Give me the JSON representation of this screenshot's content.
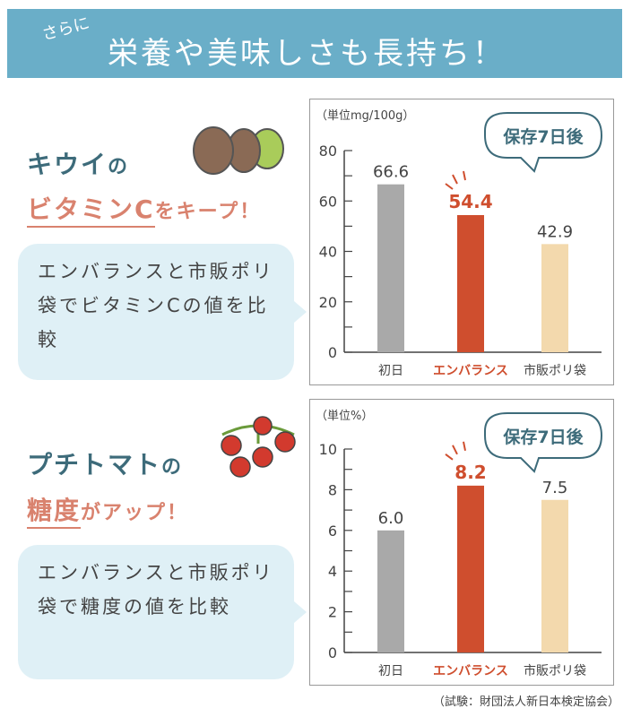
{
  "banner": {
    "pre": "さらに",
    "title": "栄養や美味しさも長持ち！",
    "color": "#6aaec8"
  },
  "kiwi": {
    "line1": "キウイ",
    "line1_suffix": "の",
    "line2_em": "ビタミンC",
    "line2_rest": "をキープ！",
    "bubble": "エンバランスと市販ポリ袋でビタミンCの値を比較",
    "icon": "kiwi-illustration"
  },
  "tomato": {
    "line1": "プチトマト",
    "line1_suffix": "の",
    "line2_em": "糖度",
    "line2_rest": "がアップ！",
    "bubble": "エンバランスと市販ポリ袋で糖度の値を比較",
    "icon": "tomato-illustration"
  },
  "chart_data": [
    {
      "type": "bar",
      "unit_label": "（単位mg/100g）",
      "callout": "保存7日後",
      "categories": [
        "初日",
        "エンバランス",
        "市販ポリ袋"
      ],
      "values": [
        66.6,
        54.4,
        42.9
      ],
      "value_labels": [
        "66.6",
        "54.4",
        "42.9"
      ],
      "ylim": [
        0,
        80
      ],
      "yticks": [
        0,
        20,
        40,
        60,
        80
      ],
      "colors": [
        "#a9a9a9",
        "#cf4e2e",
        "#f3d9ad"
      ],
      "highlight_index": 1
    },
    {
      "type": "bar",
      "unit_label": "（単位%）",
      "callout": "保存7日後",
      "categories": [
        "初日",
        "エンバランス",
        "市販ポリ袋"
      ],
      "values": [
        6.0,
        8.2,
        7.5
      ],
      "value_labels": [
        "6.0",
        "8.2",
        "7.5"
      ],
      "ylim": [
        0,
        10
      ],
      "yticks": [
        0,
        2,
        4,
        6,
        8,
        10
      ],
      "colors": [
        "#a9a9a9",
        "#cf4e2e",
        "#f3d9ad"
      ],
      "highlight_index": 1
    }
  ],
  "source": "（試験：財団法人新日本検定協会）"
}
